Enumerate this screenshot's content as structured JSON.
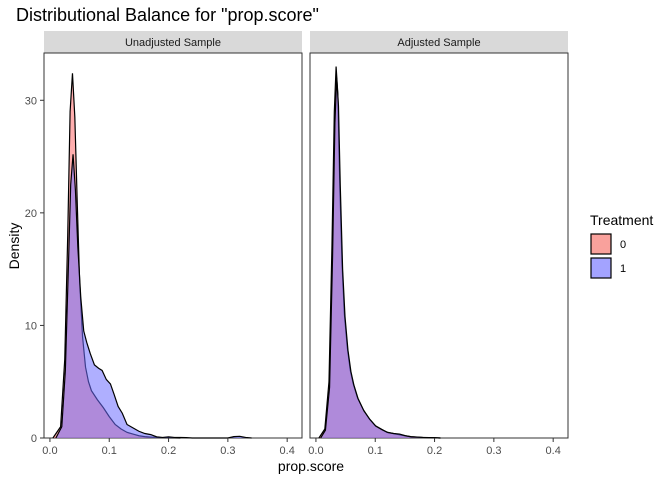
{
  "chart_data": {
    "type": "area",
    "title": "Distributional Balance for \"prop.score\"",
    "xlabel": "prop.score",
    "ylabel": "Density",
    "xlim": [
      -0.01,
      0.425
    ],
    "ylim": [
      0,
      34.2
    ],
    "x_ticks": [
      0.0,
      0.1,
      0.2,
      0.3,
      0.4
    ],
    "x_tick_labels": [
      "0.0",
      "0.1",
      "0.2",
      "0.3",
      "0.4"
    ],
    "y_ticks": [
      0,
      10,
      20,
      30
    ],
    "y_tick_labels": [
      "0",
      "10",
      "20",
      "30"
    ],
    "grid": false,
    "legend": {
      "title": "Treatment",
      "position": "right",
      "entries": [
        {
          "label": "0",
          "color": "#F8766D"
        },
        {
          "label": "1",
          "color": "#6E6EFF"
        }
      ]
    },
    "panels": [
      {
        "name": "Unadjusted Sample",
        "series": [
          {
            "name": "0",
            "color": "#FF6B6B",
            "x": [
              0.005,
              0.018,
              0.025,
              0.03,
              0.034,
              0.038,
              0.042,
              0.046,
              0.05,
              0.055,
              0.06,
              0.065,
              0.07,
              0.08,
              0.09,
              0.1,
              0.11,
              0.12,
              0.13,
              0.14,
              0.15,
              0.16,
              0.17,
              0.18,
              0.2,
              0.22
            ],
            "values": [
              0,
              1.0,
              7.0,
              18.0,
              29.0,
              32.4,
              28.5,
              21.0,
              14.0,
              9.0,
              6.3,
              5.0,
              4.2,
              3.4,
              2.7,
              1.9,
              1.2,
              0.8,
              0.5,
              0.35,
              0.2,
              0.12,
              0.08,
              0.05,
              0.02,
              0
            ]
          },
          {
            "name": "1",
            "color": "#6E6EFF",
            "x": [
              0.01,
              0.02,
              0.026,
              0.031,
              0.035,
              0.039,
              0.043,
              0.047,
              0.052,
              0.057,
              0.062,
              0.068,
              0.075,
              0.082,
              0.088,
              0.095,
              0.102,
              0.108,
              0.115,
              0.122,
              0.13,
              0.14,
              0.15,
              0.16,
              0.17,
              0.18,
              0.19,
              0.2,
              0.21,
              0.22,
              0.23,
              0.24,
              0.3,
              0.31,
              0.32,
              0.33,
              0.34
            ],
            "values": [
              0,
              1.0,
              6.0,
              15.0,
              22.5,
              25.2,
              22.0,
              17.0,
              12.5,
              9.5,
              8.5,
              7.5,
              6.5,
              6.2,
              6.0,
              5.2,
              4.8,
              3.9,
              2.8,
              2.2,
              1.2,
              0.9,
              0.6,
              0.4,
              0.3,
              0.1,
              0.05,
              0.1,
              0.05,
              0.05,
              0.03,
              0,
              0,
              0.12,
              0.15,
              0.05,
              0
            ]
          }
        ]
      },
      {
        "name": "Adjusted Sample",
        "series": [
          {
            "name": "0",
            "color": "#FF6B6B",
            "x": [
              0.005,
              0.015,
              0.022,
              0.027,
              0.031,
              0.034,
              0.037,
              0.04,
              0.044,
              0.048,
              0.053,
              0.058,
              0.063,
              0.07,
              0.08,
              0.09,
              0.1,
              0.11,
              0.12,
              0.13,
              0.14,
              0.15,
              0.16,
              0.18,
              0.2,
              0.21
            ],
            "values": [
              0,
              0.8,
              5.0,
              17.0,
              29.0,
              33.0,
              30.5,
              23.0,
              15.5,
              11.0,
              8.0,
              6.0,
              4.8,
              3.6,
              2.5,
              1.7,
              1.1,
              0.8,
              0.5,
              0.4,
              0.3,
              0.2,
              0.12,
              0.05,
              0.02,
              0
            ]
          },
          {
            "name": "1",
            "color": "#6E6EFF",
            "x": [
              0.008,
              0.016,
              0.023,
              0.028,
              0.032,
              0.035,
              0.038,
              0.041,
              0.045,
              0.049,
              0.054,
              0.059,
              0.064,
              0.071,
              0.081,
              0.091,
              0.101,
              0.111,
              0.121,
              0.131,
              0.141,
              0.151,
              0.161,
              0.181,
              0.2,
              0.21
            ],
            "values": [
              0,
              0.7,
              4.5,
              16.0,
              28.0,
              32.0,
              29.5,
              22.5,
              15.0,
              10.8,
              7.8,
              5.9,
              4.7,
              3.5,
              2.4,
              1.65,
              1.05,
              0.75,
              0.5,
              0.4,
              0.35,
              0.2,
              0.1,
              0.05,
              0.02,
              0
            ]
          }
        ]
      }
    ]
  }
}
